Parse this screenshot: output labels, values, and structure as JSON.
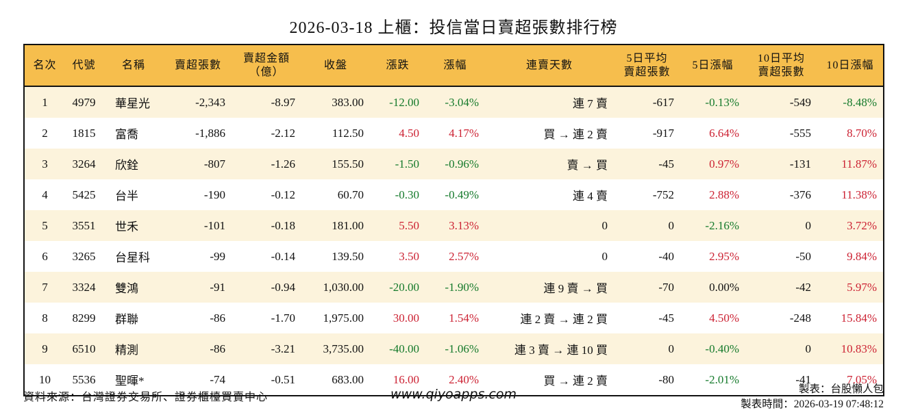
{
  "title": "2026-03-18 上櫃：投信當日賣超張數排行榜",
  "colors": {
    "header_bg": "#F6BE4D",
    "row_alt_bg": "#FCF3DC",
    "up": "#CC2233",
    "down": "#157A2B",
    "border": "#111111",
    "text": "#111111"
  },
  "chart_data": {
    "type": "table",
    "title": "2026-03-18 上櫃：投信當日賣超張數排行榜",
    "columns": [
      "名次",
      "代號",
      "名稱",
      "賣超張數",
      "賣超金額\n（億）",
      "收盤",
      "漲跌",
      "漲幅",
      "連賣天數",
      "5日平均\n賣超張數",
      "5日漲幅",
      "10日平均\n賣超張數",
      "10日漲幅"
    ],
    "rows": [
      [
        "1",
        "4979",
        "華星光",
        "-2,343",
        "-8.97",
        "383.00",
        "-12.00",
        "-3.04%",
        "連 7 賣",
        "-617",
        "-0.13%",
        "-549",
        "-8.48%"
      ],
      [
        "2",
        "1815",
        "富喬",
        "-1,886",
        "-2.12",
        "112.50",
        "4.50",
        "4.17%",
        "買 → 連 2 賣",
        "-917",
        "6.64%",
        "-555",
        "8.70%"
      ],
      [
        "3",
        "3264",
        "欣銓",
        "-807",
        "-1.26",
        "155.50",
        "-1.50",
        "-0.96%",
        "賣 → 買",
        "-45",
        "0.97%",
        "-131",
        "11.87%"
      ],
      [
        "4",
        "5425",
        "台半",
        "-190",
        "-0.12",
        "60.70",
        "-0.30",
        "-0.49%",
        "連 4 賣",
        "-752",
        "2.88%",
        "-376",
        "11.38%"
      ],
      [
        "5",
        "3551",
        "世禾",
        "-101",
        "-0.18",
        "181.00",
        "5.50",
        "3.13%",
        "0",
        "0",
        "-2.16%",
        "0",
        "3.72%"
      ],
      [
        "6",
        "3265",
        "台星科",
        "-99",
        "-0.14",
        "139.50",
        "3.50",
        "2.57%",
        "0",
        "-40",
        "2.95%",
        "-50",
        "9.84%"
      ],
      [
        "7",
        "3324",
        "雙鴻",
        "-91",
        "-0.94",
        "1,030.00",
        "-20.00",
        "-1.90%",
        "連 9 賣 → 買",
        "-70",
        "0.00%",
        "-42",
        "5.97%"
      ],
      [
        "8",
        "8299",
        "群聯",
        "-86",
        "-1.70",
        "1,975.00",
        "30.00",
        "1.54%",
        "連 2 賣 → 連 2 買",
        "-45",
        "4.50%",
        "-248",
        "15.84%"
      ],
      [
        "9",
        "6510",
        "精測",
        "-86",
        "-3.21",
        "3,735.00",
        "-40.00",
        "-1.06%",
        "連 3 賣 → 連 10 買",
        "0",
        "-0.40%",
        "0",
        "10.83%"
      ],
      [
        "10",
        "5536",
        "聖暉*",
        "-74",
        "-0.51",
        "683.00",
        "16.00",
        "2.40%",
        "買 → 連 2 賣",
        "-80",
        "-2.01%",
        "-41",
        "7.05%"
      ]
    ]
  },
  "footer": {
    "source": "資料來源：台灣證券交易所、證券櫃檯買賣中心",
    "website": "www.qiyoapps.com",
    "maker": "製表：台股懶人包",
    "timestamp": "製表時間：2026-03-19 07:48:12"
  }
}
